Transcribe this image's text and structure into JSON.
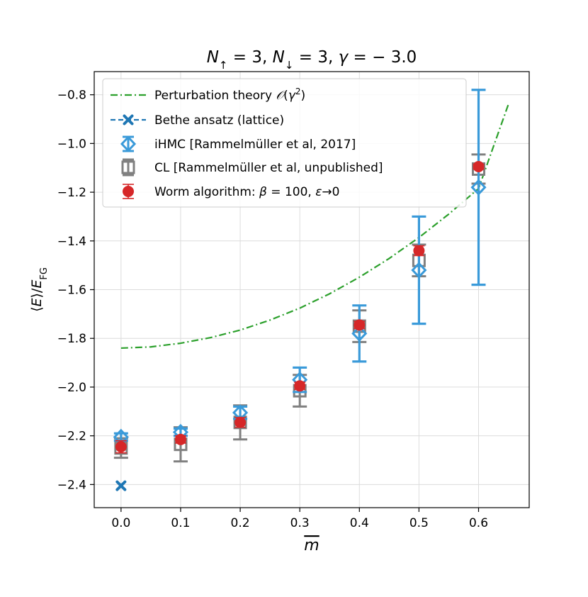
{
  "chart_data": {
    "type": "scatter",
    "title": {
      "parts": [
        {
          "text": "N",
          "italic": true
        },
        {
          "text": "↑",
          "sub": true
        },
        {
          "text": " = 3,  "
        },
        {
          "text": "N",
          "italic": true
        },
        {
          "text": "↓",
          "sub": true
        },
        {
          "text": " = 3,  "
        },
        {
          "text": "γ",
          "italic": true
        },
        {
          "text": " = − 3.0"
        }
      ]
    },
    "xlabel": {
      "parts": [
        {
          "text": "m",
          "italic": true,
          "overline": true
        }
      ]
    },
    "ylabel": {
      "parts": [
        {
          "text": "⟨"
        },
        {
          "text": "E",
          "italic": true
        },
        {
          "text": "⟩/"
        },
        {
          "text": "E",
          "italic": true
        },
        {
          "text": "FG",
          "sub": true
        }
      ]
    },
    "xlim": [
      -0.045,
      0.685
    ],
    "ylim": [
      -2.495,
      -0.705
    ],
    "xticks": [
      0.0,
      0.1,
      0.2,
      0.3,
      0.4,
      0.5,
      0.6
    ],
    "xtick_labels": [
      "0.0",
      "0.1",
      "0.2",
      "0.3",
      "0.4",
      "0.5",
      "0.6"
    ],
    "yticks": [
      -2.4,
      -2.2,
      -2.0,
      -1.8,
      -1.6,
      -1.4,
      -1.2,
      -1.0,
      -0.8
    ],
    "ytick_labels": [
      "−2.4",
      "−2.2",
      "−2.0",
      "−1.8",
      "−1.6",
      "−1.4",
      "−1.2",
      "−1.0",
      "−0.8"
    ],
    "grid": true,
    "legend_position": "upper-left",
    "colors": {
      "perturbation": "#2ca02c",
      "bethe": "#1f77b4",
      "ihmc": "#3a9ad9",
      "cl": "#808080",
      "worm": "#d62728",
      "grid": "#dcdcdc"
    },
    "series": [
      {
        "key": "perturbation",
        "name": "Perturbation theory 𝒪(γ²)",
        "legend_parts": [
          {
            "text": "Perturbation theory "
          },
          {
            "text": "𝒪",
            "italic": true
          },
          {
            "text": "("
          },
          {
            "text": "γ",
            "italic": true
          },
          {
            "text": "2",
            "sup": true
          },
          {
            "text": ")"
          }
        ],
        "kind": "curve",
        "x": [
          0.0,
          0.05,
          0.1,
          0.15,
          0.2,
          0.25,
          0.3,
          0.35,
          0.4,
          0.45,
          0.5,
          0.55,
          0.6,
          0.65
        ],
        "y": [
          -1.84,
          -1.835,
          -1.82,
          -1.797,
          -1.766,
          -1.725,
          -1.676,
          -1.617,
          -1.549,
          -1.472,
          -1.386,
          -1.29,
          -1.185,
          -0.84
        ]
      },
      {
        "key": "bethe",
        "name": "Bethe ansatz (lattice)",
        "legend_parts": [
          {
            "text": "Bethe ansatz (lattice)"
          }
        ],
        "kind": "x-marker",
        "x": [
          0.0
        ],
        "y": [
          -2.405
        ]
      },
      {
        "key": "ihmc",
        "name": "iHMC [Rammelmüller et al, 2017]",
        "legend_parts": [
          {
            "text": "iHMC [Rammelmüller et al, 2017]"
          }
        ],
        "kind": "diamond-errorbar",
        "x": [
          0.0,
          0.1,
          0.2,
          0.3,
          0.4,
          0.5,
          0.6
        ],
        "y": [
          -2.205,
          -2.185,
          -2.105,
          -1.97,
          -1.78,
          -1.52,
          -1.18
        ],
        "err": [
          0.015,
          0.015,
          0.025,
          0.05,
          0.115,
          0.22,
          0.4
        ]
      },
      {
        "key": "cl",
        "name": "CL [Rammelmüller et al, unpublished]",
        "legend_parts": [
          {
            "text": "CL [Rammelmüller et al, unpublished]"
          }
        ],
        "kind": "square-errorbar",
        "x": [
          0.0,
          0.1,
          0.2,
          0.3,
          0.4,
          0.5,
          0.6
        ],
        "y": [
          -2.25,
          -2.235,
          -2.145,
          -2.015,
          -1.75,
          -1.48,
          -1.105
        ],
        "err": [
          0.04,
          0.07,
          0.07,
          0.065,
          0.065,
          0.065,
          0.06
        ]
      },
      {
        "key": "worm",
        "name": "Worm algorithm: β = 100, ε→0",
        "legend_parts": [
          {
            "text": "Worm algorithm: "
          },
          {
            "text": "β",
            "italic": true
          },
          {
            "text": " = 100,  "
          },
          {
            "text": "ε",
            "italic": true
          },
          {
            "text": "→0"
          }
        ],
        "kind": "circle-errorbar",
        "x": [
          0.0,
          0.1,
          0.2,
          0.3,
          0.4,
          0.5,
          0.6
        ],
        "y": [
          -2.245,
          -2.215,
          -2.145,
          -1.995,
          -1.745,
          -1.44,
          -1.095
        ],
        "err": [
          0.025,
          0.015,
          0.02,
          0.015,
          0.015,
          0.02,
          0.01
        ]
      }
    ]
  }
}
